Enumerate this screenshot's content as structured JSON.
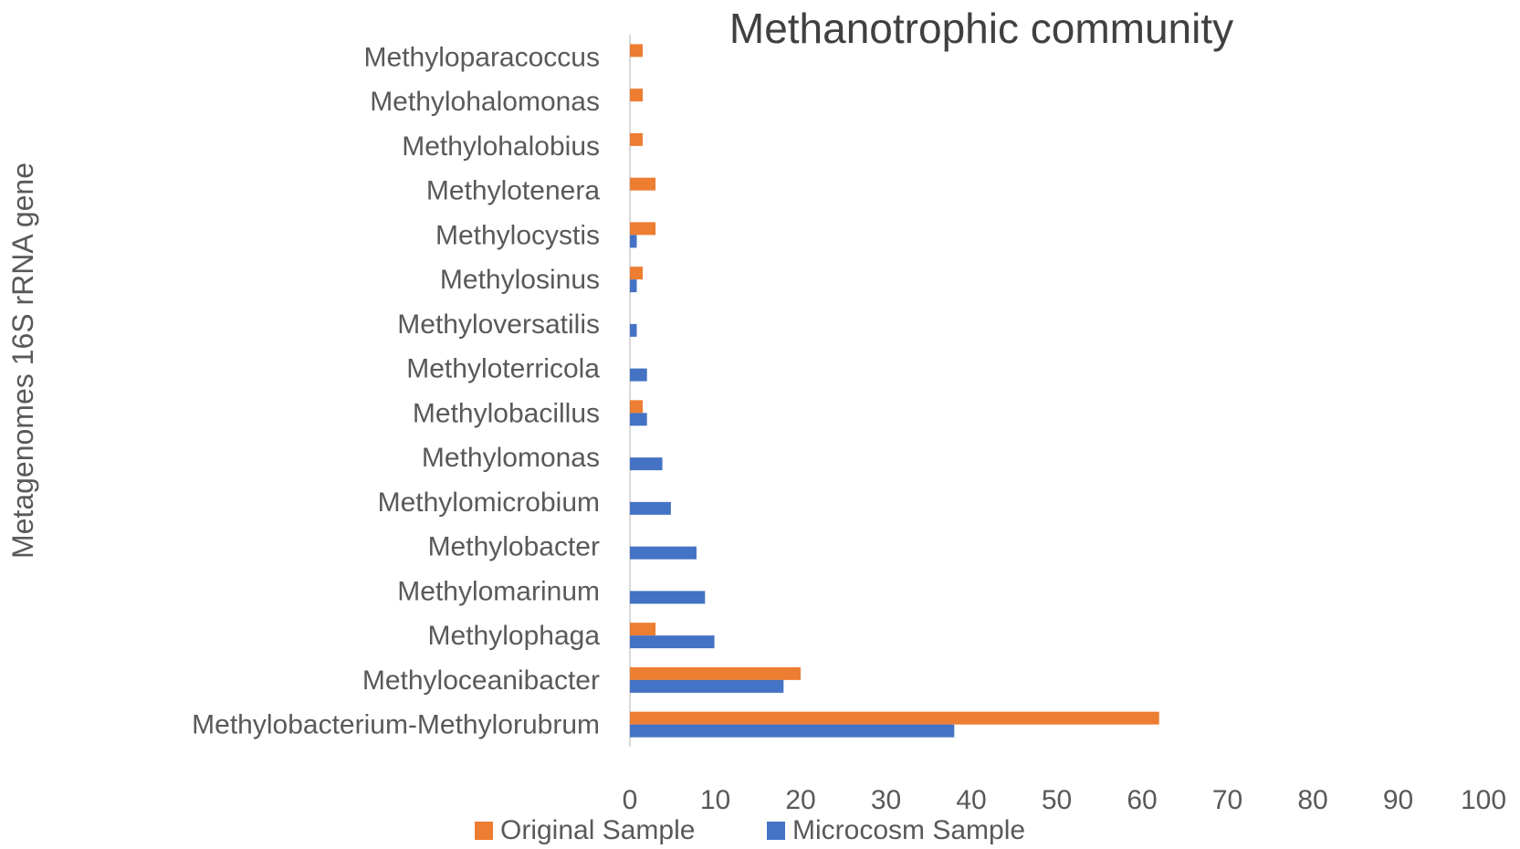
{
  "chart_data": {
    "type": "bar",
    "orientation": "horizontal",
    "title": "Methanotrophic community",
    "xlabel": "",
    "ylabel": "Metagenomes 16S rRNA gene",
    "xlim": [
      0,
      100
    ],
    "xticks": [
      "0",
      "10",
      "20",
      "30",
      "40",
      "50",
      "60",
      "70",
      "80",
      "90",
      "100"
    ],
    "grid": false,
    "legend_position": "bottom",
    "categories": [
      "Methyloparacoccus",
      "Methylohalomonas",
      "Methylohalobius",
      "Methylotenera",
      "Methylocystis",
      "Methylosinus",
      "Methyloversatilis",
      "Methyloterricola",
      "Methylobacillus",
      "Methylomonas",
      "Methylomicrobium",
      "Methylobacter",
      "Methylomarinum",
      "Methylophaga",
      "Methyloceanibacter",
      "Methylobacterium-Methylorubrum"
    ],
    "series": [
      {
        "name": "Original Sample",
        "color": "#ED7D31",
        "values": [
          1.5,
          1.5,
          1.5,
          3,
          3,
          1.5,
          0,
          0,
          1.5,
          0,
          0,
          0,
          0,
          3,
          20,
          62
        ]
      },
      {
        "name": "Microcosm Sample",
        "color": "#4472C4",
        "values": [
          0,
          0,
          0,
          0,
          0.8,
          0.8,
          0.8,
          2,
          2,
          3.8,
          4.8,
          7.8,
          8.8,
          9.9,
          18,
          38
        ]
      }
    ]
  }
}
